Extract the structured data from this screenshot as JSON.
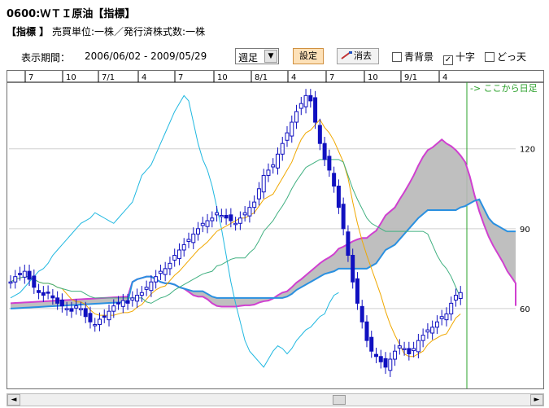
{
  "header": {
    "title": "0600:ＷＴＩ原油【指標】",
    "unit_tag": "【指標 】",
    "unit_text": "売買単位:一株／発行済株式数:一株"
  },
  "toolbar": {
    "period_label": "表示期間：",
    "period_range": "2006/06/02 - 2009/05/29",
    "interval_value": "週足",
    "settings_label": "設定",
    "erase_label": "消去",
    "checkbox_blue_bg_label": "青背景",
    "checkbox_crosshair_label": "十字",
    "checkbox_crosshair_checked": true,
    "checkbox_blue_bg_checked": false,
    "checkbox_other_label": "どっ天",
    "checkbox_other_checked": false
  },
  "chart": {
    "future_label": "-> ここから日足",
    "future_color": "#2aa02a",
    "up_color": "#ffffff",
    "down_color": "#1010c0",
    "ma_short_color": "#f0a800",
    "ma_mid_color": "#40b080",
    "lagging_color": "#20b8e0",
    "cloud_edge_a": "#d040d0",
    "cloud_edge_b": "#2a90e0"
  },
  "chart_data": {
    "type": "candlestick",
    "x_tick_labels": [
      "7",
      "10",
      "7/1",
      "4",
      "7",
      "10",
      "8/1",
      "4",
      "7",
      "10",
      "9/1",
      "4"
    ],
    "y_tick_labels": [
      "120",
      "90",
      "60"
    ],
    "ylim": [
      30,
      145
    ],
    "weekly_close": [
      70,
      72,
      73,
      74,
      71,
      68,
      66,
      65,
      66,
      64,
      62,
      61,
      60,
      59,
      61,
      60,
      57,
      55,
      54,
      56,
      57,
      59,
      61,
      62,
      63,
      62,
      64,
      65,
      66,
      68,
      70,
      72,
      74,
      75,
      77,
      80,
      82,
      84,
      86,
      88,
      90,
      92,
      93,
      94,
      96,
      95,
      94,
      93,
      92,
      94,
      96,
      98,
      100,
      105,
      110,
      112,
      114,
      118,
      122,
      126,
      130,
      134,
      137,
      140,
      138,
      130,
      122,
      116,
      112,
      106,
      98,
      90,
      80,
      70,
      62,
      55,
      48,
      44,
      42,
      40,
      38,
      41,
      44,
      46,
      45,
      43,
      45,
      48,
      50,
      52,
      53,
      55,
      57,
      58,
      62,
      65,
      66
    ]
  },
  "scrollbar": {
    "left_arrow": "◄",
    "right_arrow": "►"
  }
}
